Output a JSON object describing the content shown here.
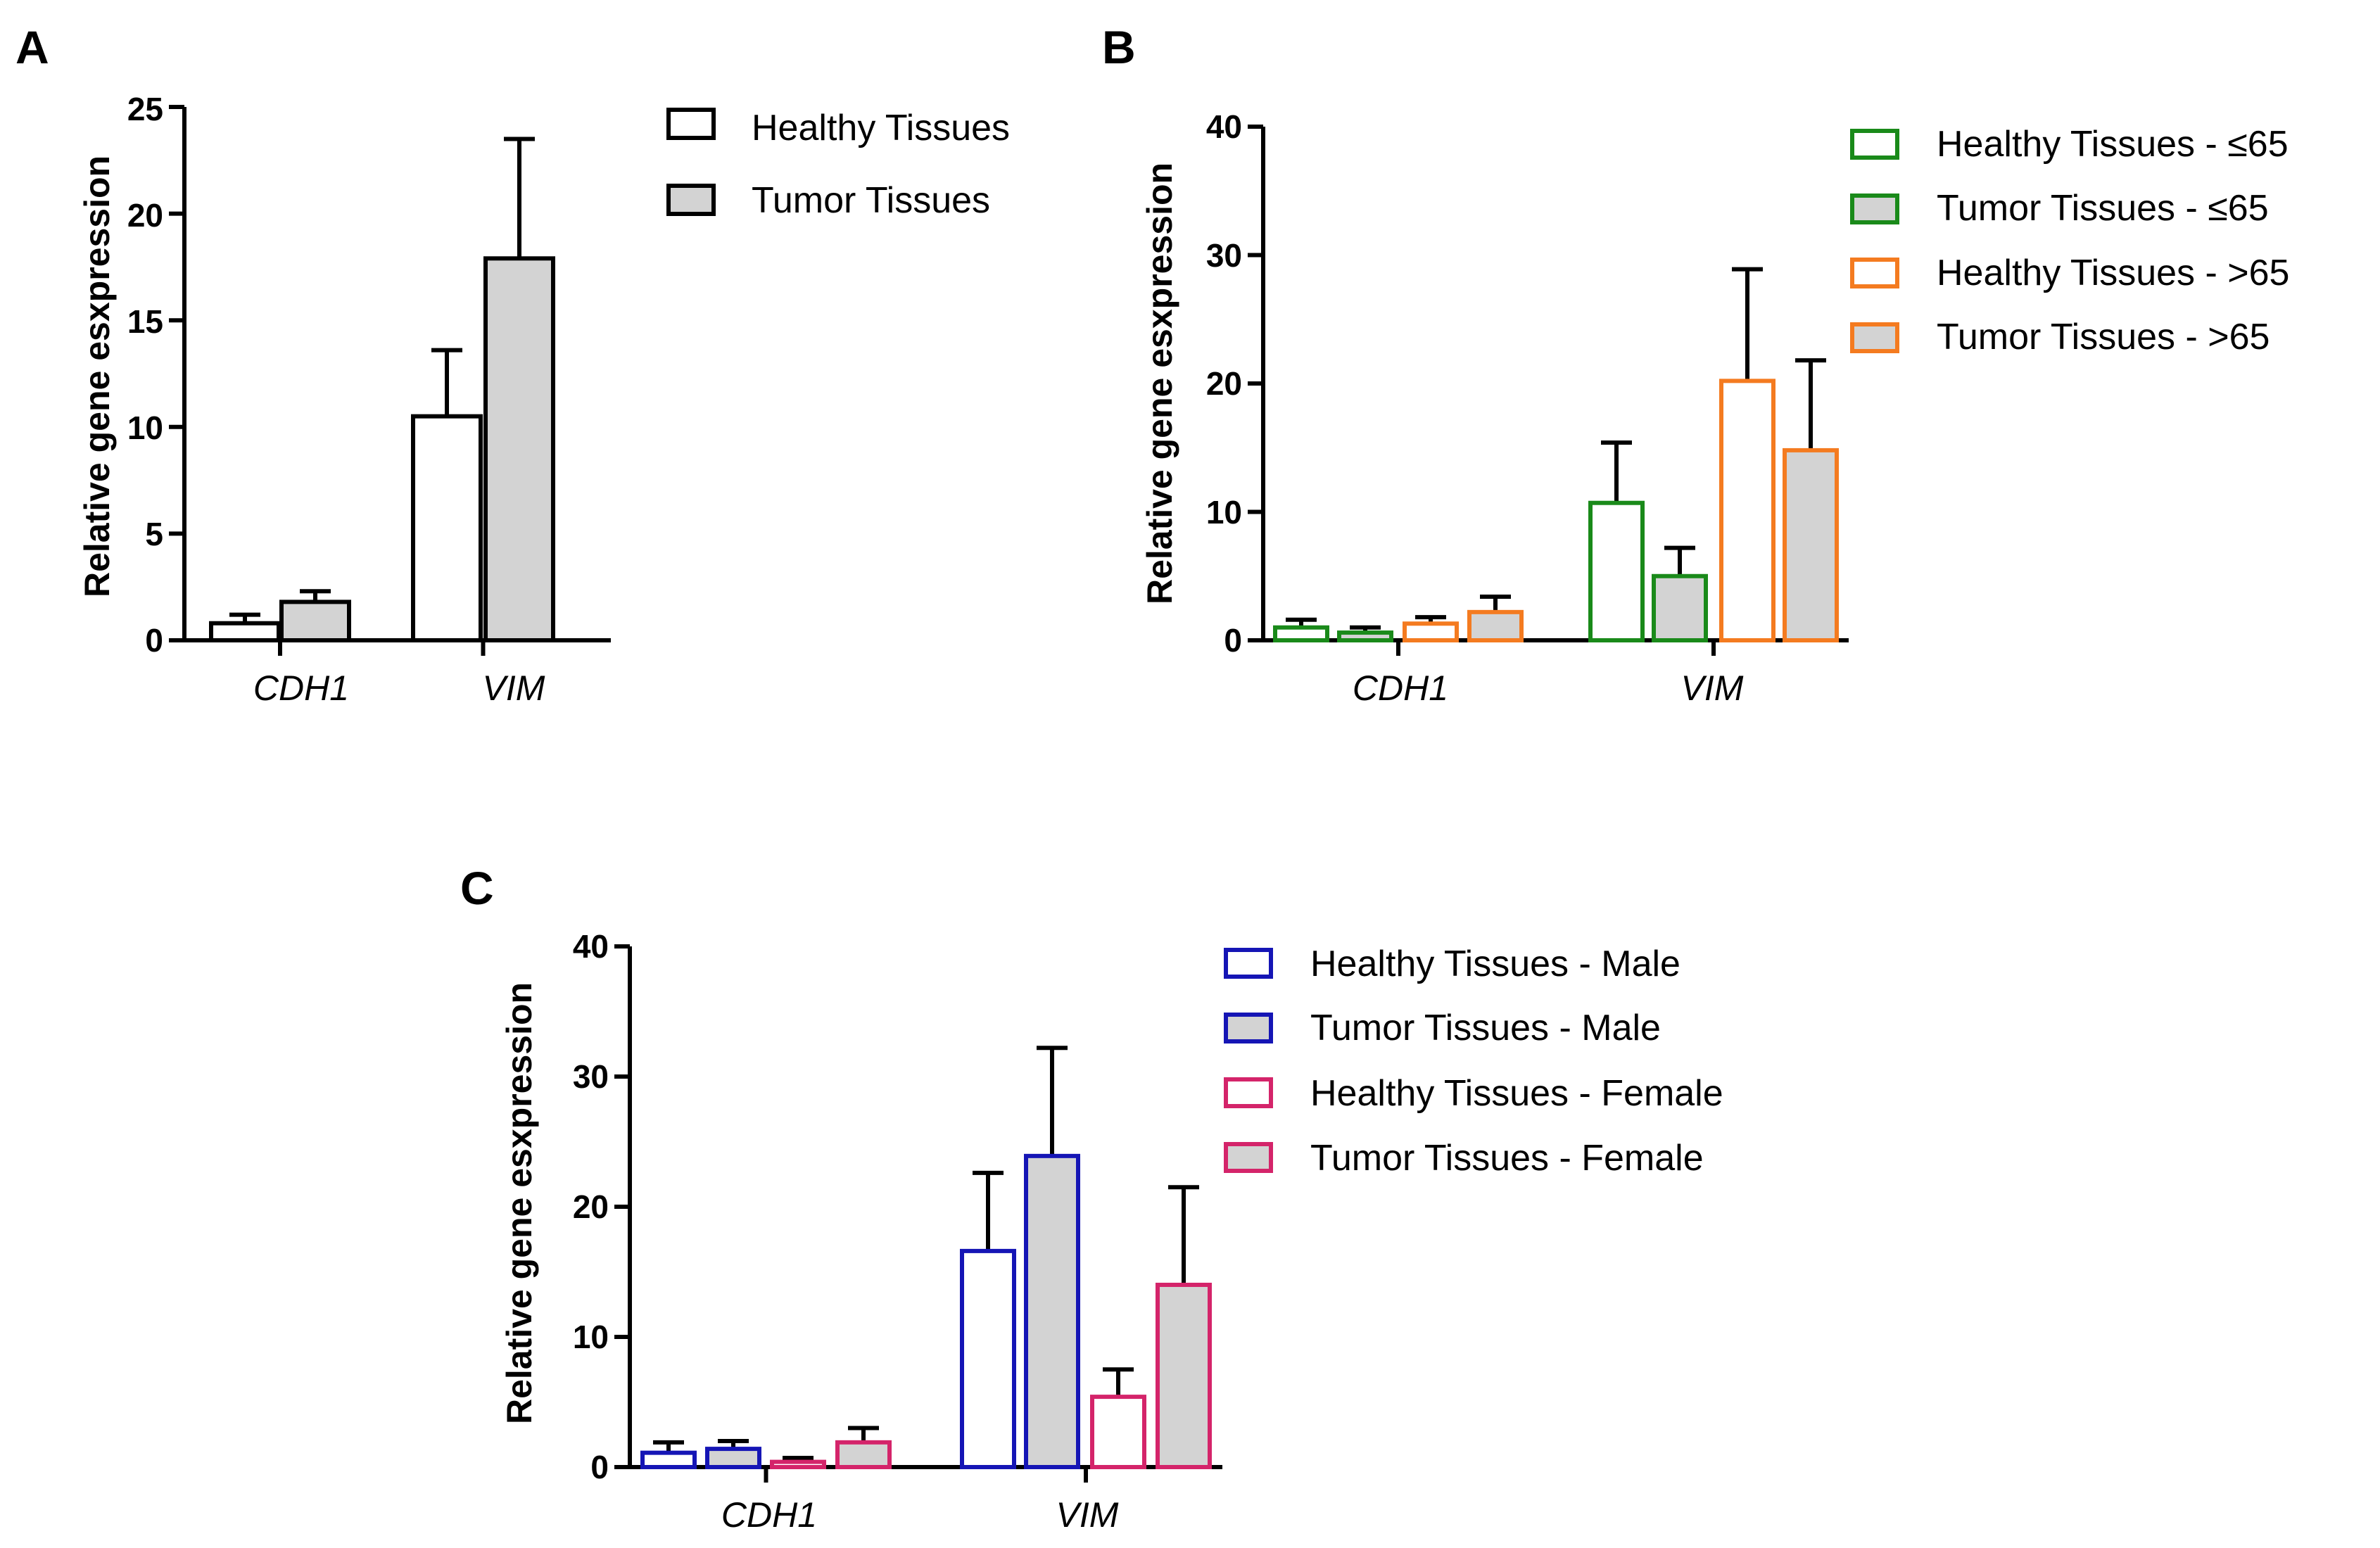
{
  "colors": {
    "axis": "#000000",
    "tumor_fill": "#d3d3d3",
    "healthy_fill": "#ffffff",
    "panel_a": "#000000",
    "green": "#1a8a1a",
    "orange": "#f47b20",
    "blue": "#1515b5",
    "magenta": "#d4246a"
  },
  "chart_data": [
    {
      "panel": "A",
      "type": "bar",
      "ylabel": "Relative gene esxpression",
      "ylim": [
        0,
        25
      ],
      "yticks": [
        0,
        5,
        10,
        15,
        20,
        25
      ],
      "categories": [
        "CDH1",
        "VIM"
      ],
      "legend_position": "top-right",
      "series": [
        {
          "name": "Healthy Tissues",
          "values": [
            0.8,
            10.5
          ],
          "errors": [
            0.4,
            3.1
          ],
          "color_key": "panel_a",
          "filled": false
        },
        {
          "name": "Tumor Tissues",
          "values": [
            1.8,
            17.9
          ],
          "errors": [
            0.5,
            5.6
          ],
          "color_key": "panel_a",
          "filled": true
        }
      ]
    },
    {
      "panel": "B",
      "type": "bar",
      "ylabel": "Relative gene esxpression",
      "ylim": [
        0,
        40
      ],
      "yticks": [
        0,
        10,
        20,
        30,
        40
      ],
      "categories": [
        "CDH1",
        "VIM"
      ],
      "legend_position": "top-right",
      "series": [
        {
          "name": "Healthy Tissues - ≤65",
          "values": [
            1.0,
            10.7
          ],
          "errors": [
            0.6,
            4.7
          ],
          "color_key": "green",
          "filled": false
        },
        {
          "name": "Tumor Tissues - ≤65",
          "values": [
            0.6,
            5.0
          ],
          "errors": [
            0.4,
            2.2
          ],
          "color_key": "green",
          "filled": true
        },
        {
          "name": "Healthy Tissues - >65",
          "values": [
            1.3,
            20.2
          ],
          "errors": [
            0.5,
            8.7
          ],
          "color_key": "orange",
          "filled": false
        },
        {
          "name": "Tumor Tissues - >65",
          "values": [
            2.2,
            14.8
          ],
          "errors": [
            1.2,
            7.0
          ],
          "color_key": "orange",
          "filled": true
        }
      ]
    },
    {
      "panel": "C",
      "type": "bar",
      "ylabel": "Relative gene esxpression",
      "ylim": [
        0,
        40
      ],
      "yticks": [
        0,
        10,
        20,
        30,
        40
      ],
      "categories": [
        "CDH1",
        "VIM"
      ],
      "legend_position": "top-right",
      "series": [
        {
          "name": "Healthy Tissues - Male",
          "values": [
            1.1,
            16.6
          ],
          "errors": [
            0.8,
            6.0
          ],
          "color_key": "blue",
          "filled": false
        },
        {
          "name": "Tumor Tissues - Male",
          "values": [
            1.4,
            23.9
          ],
          "errors": [
            0.6,
            8.3
          ],
          "color_key": "blue",
          "filled": true
        },
        {
          "name": "Healthy Tissues - Female",
          "values": [
            0.4,
            5.4
          ],
          "errors": [
            0.3,
            2.1
          ],
          "color_key": "magenta",
          "filled": false
        },
        {
          "name": "Tumor Tissues - Female",
          "values": [
            1.9,
            14.0
          ],
          "errors": [
            1.1,
            7.5
          ],
          "color_key": "magenta",
          "filled": true
        }
      ]
    }
  ]
}
